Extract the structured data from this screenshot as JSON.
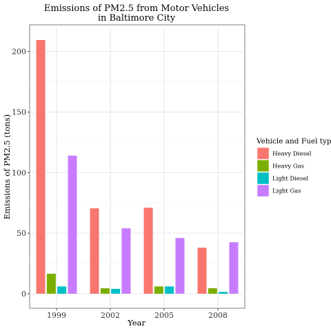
{
  "chart_data": {
    "type": "bar",
    "title": "Emissions of PM2.5 from Motor Vehicles",
    "subtitle": "in Baltimore City",
    "xlabel": "Year",
    "ylabel": "Emissions of PM2.5 (tons)",
    "categories": [
      "1999",
      "2002",
      "2005",
      "2008"
    ],
    "yticks": [
      0,
      50,
      100,
      150,
      200
    ],
    "ylim": [
      -12,
      222
    ],
    "grid": true,
    "legend_title": "Vehicle and Fuel type",
    "legend_position": "right",
    "series": [
      {
        "name": "Heavy Diesel",
        "color": "#F8766D",
        "values": [
          209.5,
          70.5,
          71.0,
          38.0
        ]
      },
      {
        "name": "Heavy Gas",
        "color": "#7CAE00",
        "values": [
          16.5,
          4.5,
          6.0,
          4.5
        ]
      },
      {
        "name": "Light Diesel",
        "color": "#00BFC4",
        "values": [
          6.0,
          4.0,
          6.0,
          1.5
        ]
      },
      {
        "name": "Light Gas",
        "color": "#C77CFF",
        "values": [
          114.0,
          54.0,
          46.0,
          42.5
        ]
      }
    ]
  }
}
